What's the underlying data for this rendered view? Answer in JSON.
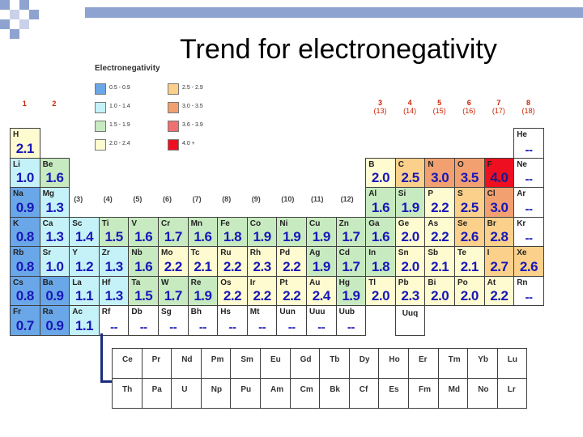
{
  "title": "Trend for electronegativity",
  "legend": {
    "title": "Electronegativity",
    "items": [
      {
        "label": "0.5 - 0.9",
        "color": "#6aa7e8"
      },
      {
        "label": "1.0 - 1.4",
        "color": "#c5f2f8"
      },
      {
        "label": "1.5 - 1.9",
        "color": "#c7eac0"
      },
      {
        "label": "2.0 - 2.4",
        "color": "#fffbd0"
      },
      {
        "label": "2.5 - 2.9",
        "color": "#fbd08a"
      },
      {
        "label": "3.0 - 3.5",
        "color": "#f2a070"
      },
      {
        "label": "3.6 - 3.9",
        "color": "#f07070"
      },
      {
        "label": "4.0 +",
        "color": "#ee1020"
      }
    ]
  },
  "groups": {
    "main": [
      {
        "col": 1,
        "label": "1"
      },
      {
        "col": 2,
        "label": "2"
      },
      {
        "col": 13,
        "label": "3",
        "sub": "(13)"
      },
      {
        "col": 14,
        "label": "4",
        "sub": "(14)"
      },
      {
        "col": 15,
        "label": "5",
        "sub": "(15)"
      },
      {
        "col": 16,
        "label": "6",
        "sub": "(16)"
      },
      {
        "col": 17,
        "label": "7",
        "sub": "(17)"
      },
      {
        "col": 18,
        "label": "8",
        "sub": "(18)"
      }
    ],
    "transition": [
      {
        "col": 3,
        "label": "(3)"
      },
      {
        "col": 4,
        "label": "(4)"
      },
      {
        "col": 5,
        "label": "(5)"
      },
      {
        "col": 6,
        "label": "(6)"
      },
      {
        "col": 7,
        "label": "(7)"
      },
      {
        "col": 8,
        "label": "(8)"
      },
      {
        "col": 9,
        "label": "(9)"
      },
      {
        "col": 10,
        "label": "(10)"
      },
      {
        "col": 11,
        "label": "(11)"
      },
      {
        "col": 12,
        "label": "(12)"
      }
    ]
  },
  "elements": [
    {
      "sym": "H",
      "en": "2.1",
      "row": 1,
      "col": 1
    },
    {
      "sym": "He",
      "en": "--",
      "row": 1,
      "col": 18
    },
    {
      "sym": "Li",
      "en": "1.0",
      "row": 2,
      "col": 1
    },
    {
      "sym": "Be",
      "en": "1.6",
      "row": 2,
      "col": 2
    },
    {
      "sym": "B",
      "en": "2.0",
      "row": 2,
      "col": 13
    },
    {
      "sym": "C",
      "en": "2.5",
      "row": 2,
      "col": 14
    },
    {
      "sym": "N",
      "en": "3.0",
      "row": 2,
      "col": 15
    },
    {
      "sym": "O",
      "en": "3.5",
      "row": 2,
      "col": 16
    },
    {
      "sym": "F",
      "en": "4.0",
      "row": 2,
      "col": 17
    },
    {
      "sym": "Ne",
      "en": "--",
      "row": 2,
      "col": 18
    },
    {
      "sym": "Na",
      "en": "0.9",
      "row": 3,
      "col": 1
    },
    {
      "sym": "Mg",
      "en": "1.3",
      "row": 3,
      "col": 2
    },
    {
      "sym": "Al",
      "en": "1.6",
      "row": 3,
      "col": 13
    },
    {
      "sym": "Si",
      "en": "1.9",
      "row": 3,
      "col": 14
    },
    {
      "sym": "P",
      "en": "2.2",
      "row": 3,
      "col": 15
    },
    {
      "sym": "S",
      "en": "2.5",
      "row": 3,
      "col": 16
    },
    {
      "sym": "Cl",
      "en": "3.0",
      "row": 3,
      "col": 17
    },
    {
      "sym": "Ar",
      "en": "--",
      "row": 3,
      "col": 18
    },
    {
      "sym": "K",
      "en": "0.8",
      "row": 4,
      "col": 1
    },
    {
      "sym": "Ca",
      "en": "1.3",
      "row": 4,
      "col": 2
    },
    {
      "sym": "Sc",
      "en": "1.4",
      "row": 4,
      "col": 3
    },
    {
      "sym": "Ti",
      "en": "1.5",
      "row": 4,
      "col": 4
    },
    {
      "sym": "V",
      "en": "1.6",
      "row": 4,
      "col": 5
    },
    {
      "sym": "Cr",
      "en": "1.7",
      "row": 4,
      "col": 6
    },
    {
      "sym": "Mn",
      "en": "1.6",
      "row": 4,
      "col": 7
    },
    {
      "sym": "Fe",
      "en": "1.8",
      "row": 4,
      "col": 8
    },
    {
      "sym": "Co",
      "en": "1.9",
      "row": 4,
      "col": 9
    },
    {
      "sym": "Ni",
      "en": "1.9",
      "row": 4,
      "col": 10
    },
    {
      "sym": "Cu",
      "en": "1.9",
      "row": 4,
      "col": 11
    },
    {
      "sym": "Zn",
      "en": "1.7",
      "row": 4,
      "col": 12
    },
    {
      "sym": "Ga",
      "en": "1.6",
      "row": 4,
      "col": 13
    },
    {
      "sym": "Ge",
      "en": "2.0",
      "row": 4,
      "col": 14
    },
    {
      "sym": "As",
      "en": "2.2",
      "row": 4,
      "col": 15
    },
    {
      "sym": "Se",
      "en": "2.6",
      "row": 4,
      "col": 16
    },
    {
      "sym": "Br",
      "en": "2.8",
      "row": 4,
      "col": 17
    },
    {
      "sym": "Kr",
      "en": "--",
      "row": 4,
      "col": 18
    },
    {
      "sym": "Rb",
      "en": "0.8",
      "row": 5,
      "col": 1
    },
    {
      "sym": "Sr",
      "en": "1.0",
      "row": 5,
      "col": 2
    },
    {
      "sym": "Y",
      "en": "1.2",
      "row": 5,
      "col": 3
    },
    {
      "sym": "Zr",
      "en": "1.3",
      "row": 5,
      "col": 4
    },
    {
      "sym": "Nb",
      "en": "1.6",
      "row": 5,
      "col": 5
    },
    {
      "sym": "Mo",
      "en": "2.2",
      "row": 5,
      "col": 6
    },
    {
      "sym": "Tc",
      "en": "2.1",
      "row": 5,
      "col": 7
    },
    {
      "sym": "Ru",
      "en": "2.2",
      "row": 5,
      "col": 8
    },
    {
      "sym": "Rh",
      "en": "2.3",
      "row": 5,
      "col": 9
    },
    {
      "sym": "Pd",
      "en": "2.2",
      "row": 5,
      "col": 10
    },
    {
      "sym": "Ag",
      "en": "1.9",
      "row": 5,
      "col": 11
    },
    {
      "sym": "Cd",
      "en": "1.7",
      "row": 5,
      "col": 12
    },
    {
      "sym": "In",
      "en": "1.8",
      "row": 5,
      "col": 13
    },
    {
      "sym": "Sn",
      "en": "2.0",
      "row": 5,
      "col": 14
    },
    {
      "sym": "Sb",
      "en": "2.1",
      "row": 5,
      "col": 15
    },
    {
      "sym": "Te",
      "en": "2.1",
      "row": 5,
      "col": 16
    },
    {
      "sym": "I",
      "en": "2.7",
      "row": 5,
      "col": 17
    },
    {
      "sym": "Xe",
      "en": "2.6",
      "row": 5,
      "col": 18
    },
    {
      "sym": "Cs",
      "en": "0.8",
      "row": 6,
      "col": 1
    },
    {
      "sym": "Ba",
      "en": "0.9",
      "row": 6,
      "col": 2
    },
    {
      "sym": "La",
      "en": "1.1",
      "row": 6,
      "col": 3
    },
    {
      "sym": "Hf",
      "en": "1.3",
      "row": 6,
      "col": 4
    },
    {
      "sym": "Ta",
      "en": "1.5",
      "row": 6,
      "col": 5
    },
    {
      "sym": "W",
      "en": "1.7",
      "row": 6,
      "col": 6
    },
    {
      "sym": "Re",
      "en": "1.9",
      "row": 6,
      "col": 7
    },
    {
      "sym": "Os",
      "en": "2.2",
      "row": 6,
      "col": 8
    },
    {
      "sym": "Ir",
      "en": "2.2",
      "row": 6,
      "col": 9
    },
    {
      "sym": "Pt",
      "en": "2.2",
      "row": 6,
      "col": 10
    },
    {
      "sym": "Au",
      "en": "2.4",
      "row": 6,
      "col": 11
    },
    {
      "sym": "Hg",
      "en": "1.9",
      "row": 6,
      "col": 12
    },
    {
      "sym": "Tl",
      "en": "2.0",
      "row": 6,
      "col": 13
    },
    {
      "sym": "Pb",
      "en": "2.3",
      "row": 6,
      "col": 14
    },
    {
      "sym": "Bi",
      "en": "2.0",
      "row": 6,
      "col": 15
    },
    {
      "sym": "Po",
      "en": "2.0",
      "row": 6,
      "col": 16
    },
    {
      "sym": "At",
      "en": "2.2",
      "row": 6,
      "col": 17
    },
    {
      "sym": "Rn",
      "en": "--",
      "row": 6,
      "col": 18
    },
    {
      "sym": "Fr",
      "en": "0.7",
      "row": 7,
      "col": 1
    },
    {
      "sym": "Ra",
      "en": "0.9",
      "row": 7,
      "col": 2
    },
    {
      "sym": "Ac",
      "en": "1.1",
      "row": 7,
      "col": 3
    },
    {
      "sym": "Rf",
      "en": "--",
      "row": 7,
      "col": 4
    },
    {
      "sym": "Db",
      "en": "--",
      "row": 7,
      "col": 5
    },
    {
      "sym": "Sg",
      "en": "--",
      "row": 7,
      "col": 6
    },
    {
      "sym": "Bh",
      "en": "--",
      "row": 7,
      "col": 7
    },
    {
      "sym": "Hs",
      "en": "--",
      "row": 7,
      "col": 8
    },
    {
      "sym": "Mt",
      "en": "--",
      "row": 7,
      "col": 9
    },
    {
      "sym": "Uun",
      "en": "--",
      "row": 7,
      "col": 10
    },
    {
      "sym": "Uuu",
      "en": "--",
      "row": 7,
      "col": 11
    },
    {
      "sym": "Uub",
      "en": "--",
      "row": 7,
      "col": 12
    },
    {
      "sym": "Uuq",
      "en": "",
      "row": 7,
      "col": 14
    }
  ],
  "lanthanides": [
    "Ce",
    "Pr",
    "Nd",
    "Pm",
    "Sm",
    "Eu",
    "Gd",
    "Tb",
    "Dy",
    "Ho",
    "Er",
    "Tm",
    "Yb",
    "Lu"
  ],
  "actinides": [
    "Th",
    "Pa",
    "U",
    "Np",
    "Pu",
    "Am",
    "Cm",
    "Bk",
    "Cf",
    "Es",
    "Fm",
    "Md",
    "No",
    "Lr"
  ]
}
